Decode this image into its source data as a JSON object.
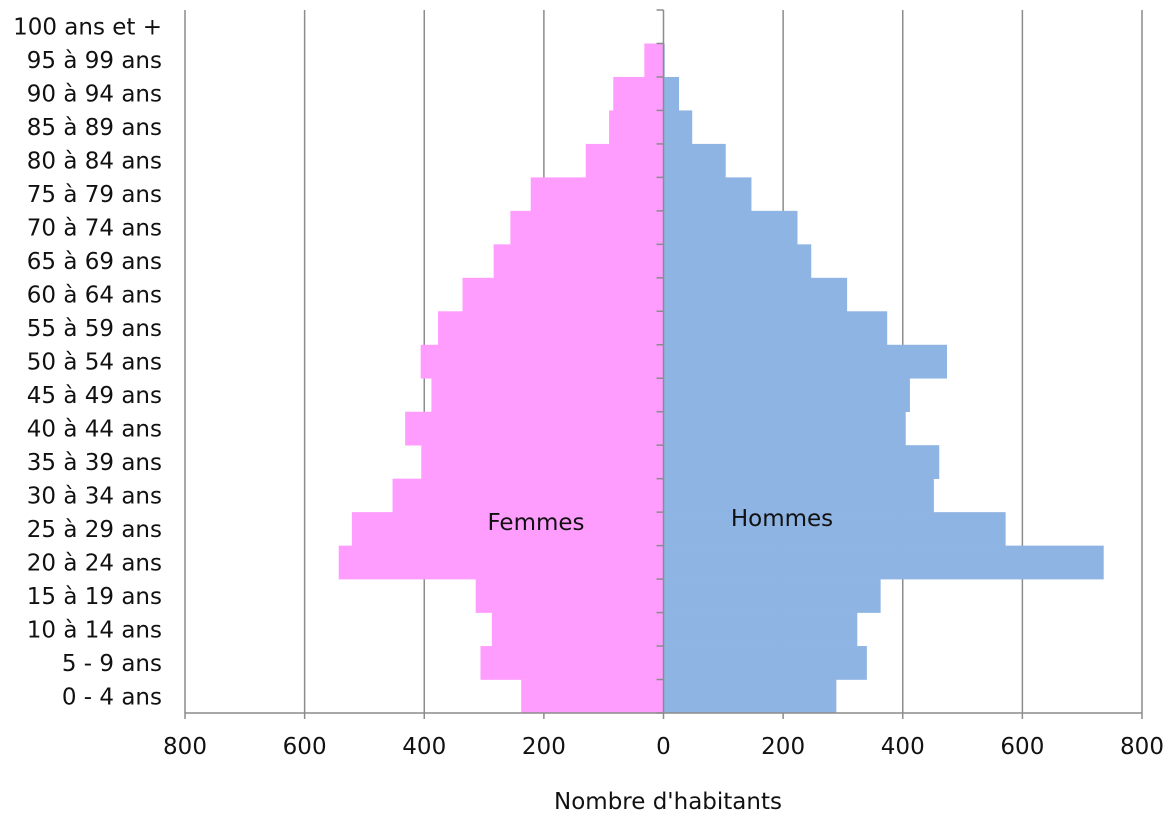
{
  "chart_data": {
    "type": "bar",
    "orientation": "horizontal",
    "layout": "population-pyramid",
    "categories": [
      "0 - 4 ans",
      "5 - 9 ans",
      "10 à 14 ans",
      "15 à 19 ans",
      "20 à 24 ans",
      "25 à 29 ans",
      "30 à 34 ans",
      "35 à 39 ans",
      "40 à 44 ans",
      "45 à 49 ans",
      "50 à 54 ans",
      "55 à 59 ans",
      "60 à 64 ans",
      "65 à 69 ans",
      "70 à 74 ans",
      "75 à 79 ans",
      "80 à 84 ans",
      "85 à 89 ans",
      "90 à 94 ans",
      "95 à 99 ans",
      "100 ans et +"
    ],
    "series": [
      {
        "name": "Femmes",
        "side": "left",
        "color": "#ff9dff",
        "values": [
          238,
          306,
          287,
          314,
          543,
          521,
          453,
          405,
          432,
          388,
          406,
          377,
          336,
          284,
          256,
          222,
          130,
          91,
          84,
          32,
          0
        ]
      },
      {
        "name": "Hommes",
        "side": "right",
        "color": "#8eb4e3",
        "values": [
          289,
          340,
          324,
          363,
          736,
          572,
          452,
          461,
          405,
          412,
          474,
          374,
          307,
          247,
          224,
          147,
          104,
          48,
          26,
          2,
          0
        ]
      }
    ],
    "xlabel": "Nombre d'habitants",
    "ylabel": "",
    "xlim": [
      -800,
      800
    ],
    "xticks": [
      -800,
      -600,
      -400,
      -200,
      0,
      200,
      400,
      600,
      800
    ],
    "xtick_labels": [
      "800",
      "600",
      "400",
      "200",
      "0",
      "200",
      "400",
      "600",
      "800"
    ],
    "grid": "vertical",
    "legend": "none"
  }
}
